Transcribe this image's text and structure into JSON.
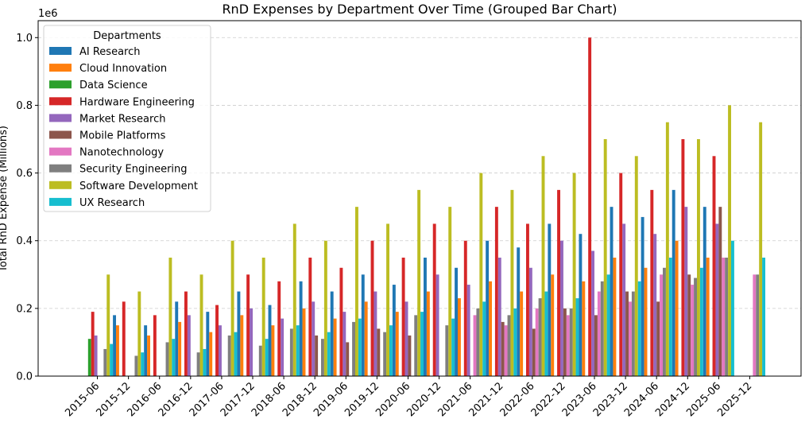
{
  "chart_data": {
    "type": "bar",
    "title": "RnD Expenses by Department Over Time (Grouped Bar Chart)",
    "xlabel": "",
    "ylabel": "Total RnD Expense (Millions)",
    "y_offset_label": "1e6",
    "ylim": [
      0,
      1050000
    ],
    "yticks": [
      0,
      200000,
      400000,
      600000,
      800000,
      1000000
    ],
    "ytick_labels": [
      "0.0",
      "0.2",
      "0.4",
      "0.6",
      "0.8",
      "1.0"
    ],
    "grid": "y-dashed",
    "legend_title": "Departments",
    "legend_placement": "top-left",
    "categories": [
      "2015-06",
      "2015-12",
      "2016-06",
      "2016-12",
      "2017-06",
      "2017-12",
      "2018-06",
      "2018-12",
      "2019-06",
      "2019-12",
      "2020-06",
      "2020-12",
      "2021-06",
      "2021-12",
      "2022-06",
      "2022-12",
      "2023-06",
      "2023-12",
      "2024-06",
      "2024-12",
      "2025-06",
      "2025-12"
    ],
    "series": [
      {
        "name": "AI Research",
        "color": "#1f77b4",
        "values": [
          0,
          180000,
          150000,
          220000,
          190000,
          250000,
          210000,
          280000,
          250000,
          300000,
          270000,
          350000,
          320000,
          400000,
          380000,
          450000,
          420000,
          500000,
          470000,
          550000,
          500000,
          0
        ]
      },
      {
        "name": "Cloud Innovation",
        "color": "#ff7f0e",
        "values": [
          0,
          150000,
          120000,
          160000,
          130000,
          180000,
          150000,
          200000,
          170000,
          220000,
          190000,
          250000,
          230000,
          280000,
          250000,
          300000,
          280000,
          350000,
          320000,
          400000,
          350000,
          0
        ]
      },
      {
        "name": "Data Science",
        "color": "#2ca02c",
        "values": [
          110000,
          0,
          0,
          0,
          0,
          0,
          0,
          0,
          0,
          0,
          0,
          0,
          0,
          0,
          0,
          0,
          0,
          0,
          0,
          0,
          0,
          0
        ]
      },
      {
        "name": "Hardware Engineering",
        "color": "#d62728",
        "values": [
          190000,
          220000,
          180000,
          250000,
          210000,
          300000,
          280000,
          350000,
          320000,
          400000,
          350000,
          450000,
          400000,
          500000,
          450000,
          550000,
          1000000,
          600000,
          550000,
          700000,
          650000,
          0
        ]
      },
      {
        "name": "Market Research",
        "color": "#9467bd",
        "values": [
          120000,
          0,
          0,
          180000,
          150000,
          200000,
          170000,
          220000,
          190000,
          250000,
          220000,
          300000,
          270000,
          350000,
          320000,
          400000,
          370000,
          450000,
          420000,
          500000,
          450000,
          0
        ]
      },
      {
        "name": "Mobile Platforms",
        "color": "#8c564b",
        "values": [
          0,
          0,
          0,
          0,
          0,
          0,
          0,
          120000,
          100000,
          140000,
          120000,
          0,
          0,
          160000,
          140000,
          200000,
          180000,
          250000,
          220000,
          300000,
          500000,
          0
        ]
      },
      {
        "name": "Nanotechnology",
        "color": "#e377c2",
        "values": [
          0,
          0,
          0,
          0,
          0,
          0,
          0,
          0,
          0,
          0,
          0,
          0,
          180000,
          150000,
          200000,
          180000,
          250000,
          220000,
          300000,
          270000,
          350000,
          300000
        ]
      },
      {
        "name": "Security Engineering",
        "color": "#7f7f7f",
        "values": [
          80000,
          60000,
          100000,
          70000,
          120000,
          90000,
          140000,
          110000,
          160000,
          130000,
          180000,
          150000,
          200000,
          180000,
          230000,
          200000,
          280000,
          250000,
          320000,
          290000,
          350000,
          300000
        ]
      },
      {
        "name": "Software Development",
        "color": "#bcbd22",
        "values": [
          300000,
          250000,
          350000,
          300000,
          400000,
          350000,
          450000,
          400000,
          500000,
          450000,
          550000,
          500000,
          600000,
          550000,
          650000,
          600000,
          700000,
          650000,
          750000,
          700000,
          800000,
          750000
        ]
      },
      {
        "name": "UX Research",
        "color": "#17becf",
        "values": [
          95000,
          70000,
          110000,
          80000,
          130000,
          110000,
          150000,
          130000,
          170000,
          150000,
          190000,
          170000,
          220000,
          200000,
          250000,
          230000,
          300000,
          280000,
          350000,
          320000,
          400000,
          350000
        ]
      }
    ]
  }
}
